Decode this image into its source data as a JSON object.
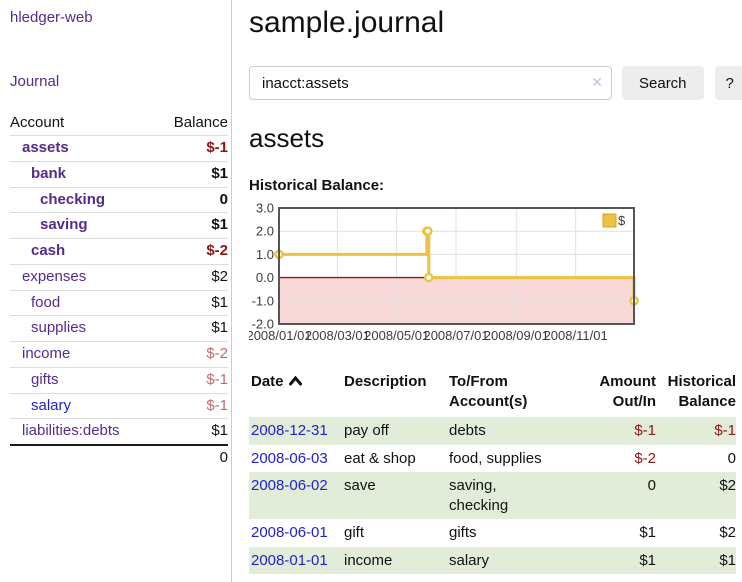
{
  "app": {
    "title": "hledger-web"
  },
  "sidebar": {
    "nav_journal": "Journal",
    "accounts_table": {
      "headers": [
        "Account",
        "Balance"
      ],
      "rows": [
        {
          "account": "assets",
          "balance": "$-1",
          "depth": 0,
          "in_query": true,
          "balance_tone": "neg-strong",
          "link_color": "purple"
        },
        {
          "account": "bank",
          "balance": "$1",
          "depth": 1,
          "in_query": true,
          "balance_tone": "default",
          "link_color": "purple"
        },
        {
          "account": "checking",
          "balance": "0",
          "depth": 2,
          "in_query": true,
          "balance_tone": "default",
          "link_color": "purple"
        },
        {
          "account": "saving",
          "balance": "$1",
          "depth": 2,
          "in_query": true,
          "balance_tone": "default",
          "link_color": "purple"
        },
        {
          "account": "cash",
          "balance": "$-2",
          "depth": 1,
          "in_query": true,
          "balance_tone": "neg-strong",
          "link_color": "purple"
        },
        {
          "account": "expenses",
          "balance": "$2",
          "depth": 0,
          "in_query": false,
          "balance_tone": "default",
          "link_color": "purple"
        },
        {
          "account": "food",
          "balance": "$1",
          "depth": 1,
          "in_query": false,
          "balance_tone": "default",
          "link_color": "purple"
        },
        {
          "account": "supplies",
          "balance": "$1",
          "depth": 1,
          "in_query": false,
          "balance_tone": "default",
          "link_color": "purple"
        },
        {
          "account": "income",
          "balance": "$-2",
          "depth": 0,
          "in_query": false,
          "balance_tone": "neg-weak",
          "link_color": "purple"
        },
        {
          "account": "gifts",
          "balance": "$-1",
          "depth": 1,
          "in_query": false,
          "balance_tone": "neg-weak",
          "link_color": "purple"
        },
        {
          "account": "salary",
          "balance": "$-1",
          "depth": 1,
          "in_query": false,
          "balance_tone": "neg-weak",
          "link_color": "blue"
        },
        {
          "account": "liabilities:debts",
          "balance": "$1",
          "depth": 0,
          "in_query": false,
          "balance_tone": "default",
          "link_color": "purple"
        }
      ],
      "total": "0"
    }
  },
  "main": {
    "title": "sample.journal",
    "search": {
      "value": "inacct:assets",
      "clear_icon": "✕",
      "search_button": "Search",
      "help_button": "?"
    },
    "account_heading": "assets",
    "chart_label": "Historical Balance:"
  },
  "register": {
    "headers": [
      "Date",
      "Description",
      "To/From\nAccount(s)",
      "Amount\nOut/In",
      "Historical\nBalance"
    ],
    "sort_column": "Date",
    "sort_direction": "ascending",
    "rows": [
      {
        "date": "2008-12-31",
        "description": "pay off",
        "accounts": "debts",
        "amount": "$-1",
        "amount_negative": true,
        "balance": "$-1",
        "balance_negative": true,
        "shaded": true
      },
      {
        "date": "2008-06-03",
        "description": "eat & shop",
        "accounts": "food, supplies",
        "amount": "$-2",
        "amount_negative": true,
        "balance": "0",
        "balance_negative": false,
        "shaded": false
      },
      {
        "date": "2008-06-02",
        "description": "save",
        "accounts": "saving,\nchecking",
        "amount": "0",
        "amount_negative": false,
        "balance": "$2",
        "balance_negative": false,
        "shaded": true
      },
      {
        "date": "2008-06-01",
        "description": "gift",
        "accounts": "gifts",
        "amount": "$1",
        "amount_negative": false,
        "balance": "$2",
        "balance_negative": false,
        "shaded": false
      },
      {
        "date": "2008-01-01",
        "description": "income",
        "accounts": "salary",
        "amount": "$1",
        "amount_negative": false,
        "balance": "$1",
        "balance_negative": false,
        "shaded": true
      }
    ]
  },
  "chart_data": {
    "type": "line",
    "title": "Historical Balance:",
    "steps": true,
    "series": [
      {
        "name": "$",
        "color": "#edc240",
        "points": [
          [
            "2008-01-01",
            1
          ],
          [
            "2008-06-01",
            2
          ],
          [
            "2008-06-02",
            2
          ],
          [
            "2008-06-03",
            0
          ],
          [
            "2008-12-31",
            -1
          ]
        ]
      }
    ],
    "xlim": [
      "2008-01-01",
      "2008-12-31"
    ],
    "ylim": [
      -2,
      3
    ],
    "yticks": [
      3,
      2,
      1,
      0,
      -1,
      -2
    ],
    "xticks": [
      "2008/01/01",
      "2008/03/01",
      "2008/05/01",
      "2008/07/01",
      "2008/09/01",
      "2008/11/01"
    ],
    "grid": true,
    "legend_position": "top-right",
    "negative_region_color": "#f9d8d8",
    "zero_line_color": "#8b1a1a"
  },
  "colors": {
    "link_purple": "#552b90",
    "link_blue": "#2222cc",
    "negative_strong": "#8c1616",
    "negative_weak": "#c46a6a",
    "row_stripe_green": "#e1edd8",
    "chart_line_gold": "#edc240",
    "chart_negative_bg": "#f9d8d8",
    "chart_zero_line": "#8b1a1a",
    "chart_border": "#555555",
    "chart_grid": "#e0e0e0"
  }
}
